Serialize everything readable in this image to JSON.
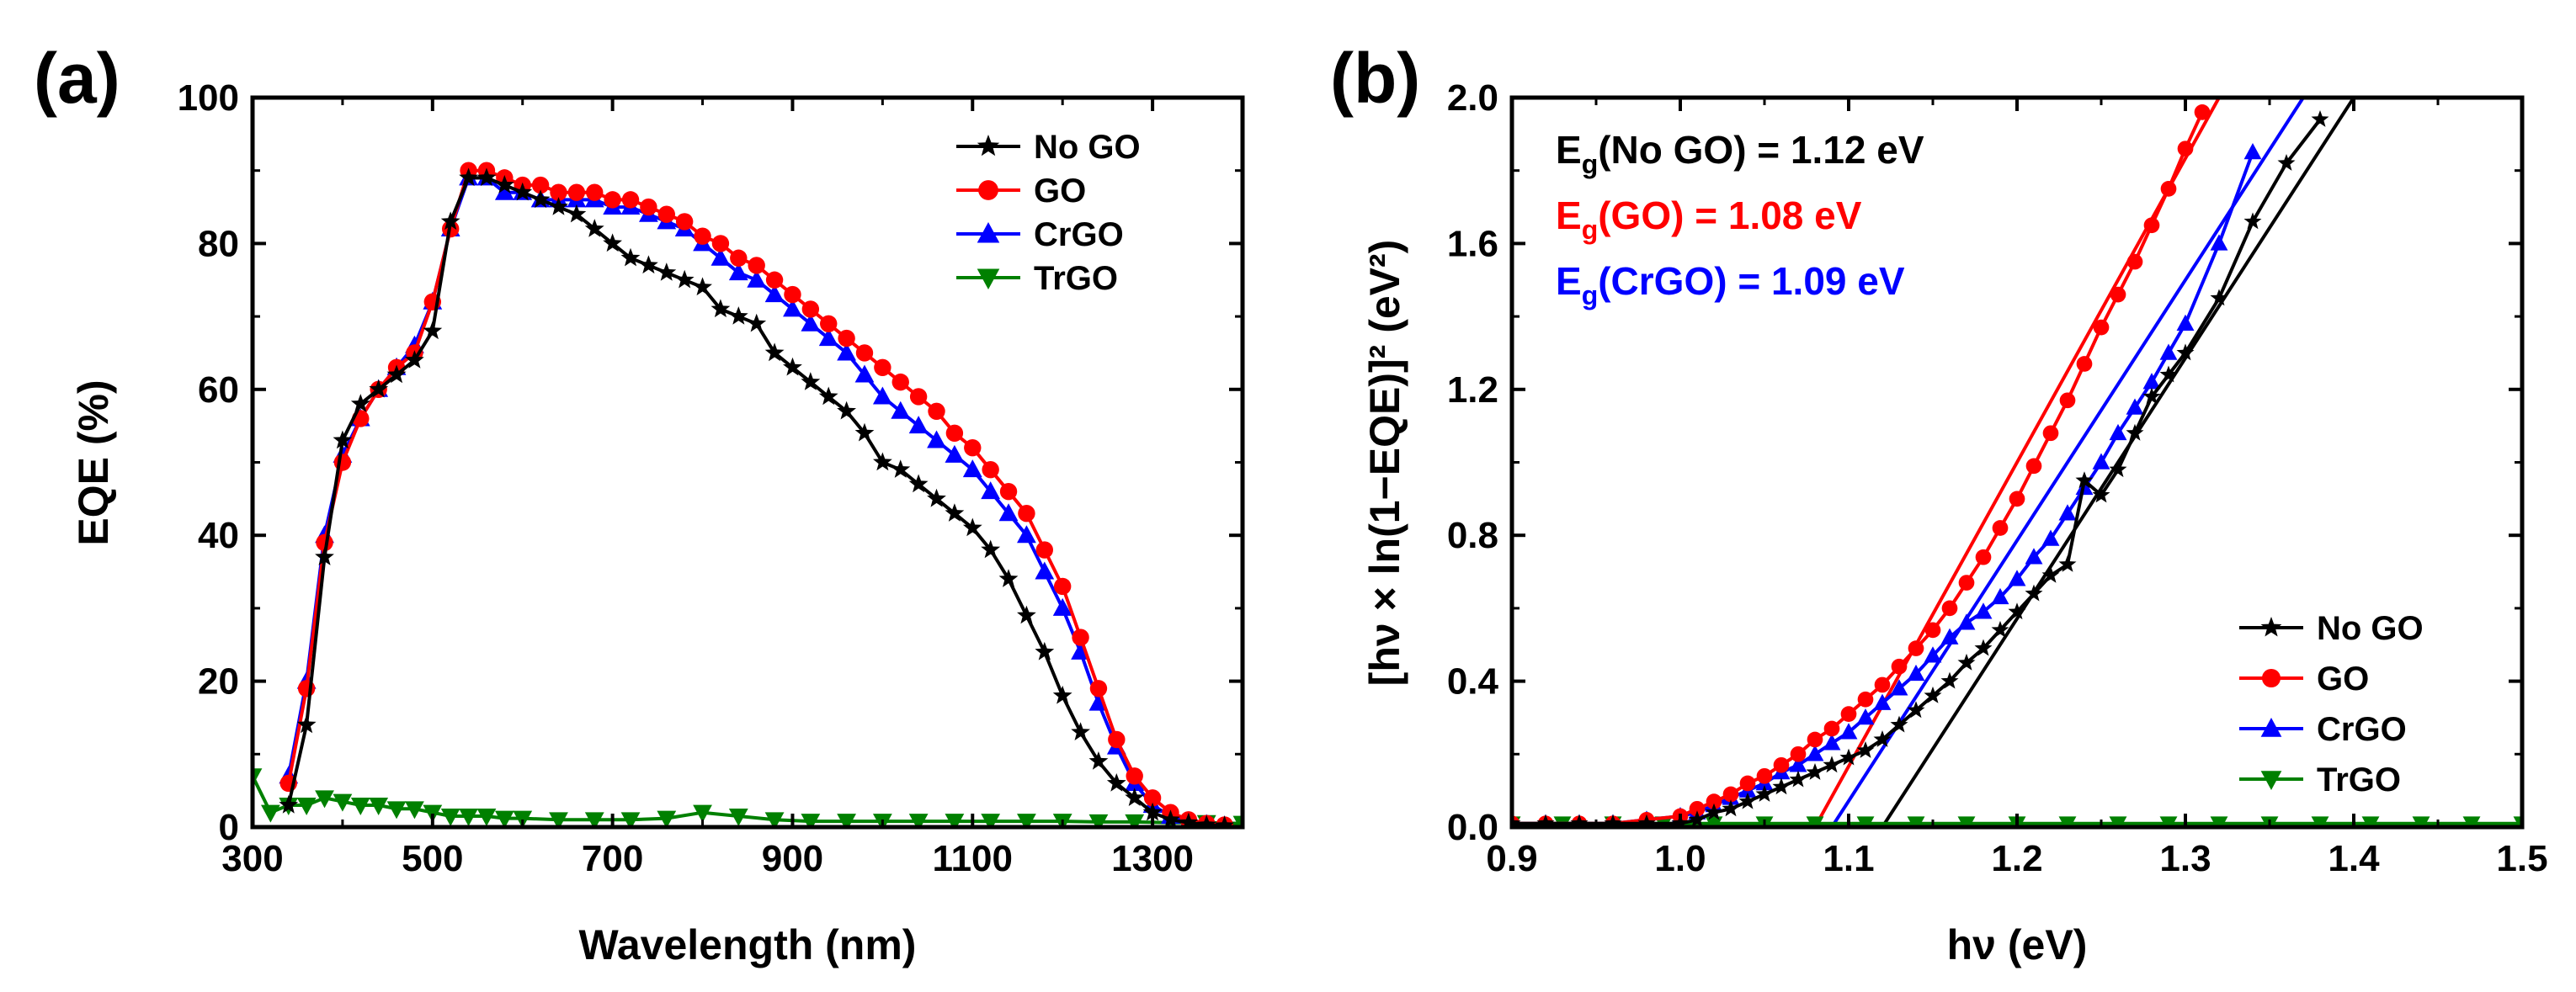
{
  "panel_labels": {
    "a": "(a)",
    "b": "(b)"
  },
  "colors": {
    "No GO": "#000000",
    "GO": "#ff0000",
    "CrGO": "#0000ff",
    "TrGO": "#008000"
  },
  "annotations": {
    "b": [
      {
        "pre": "E",
        "sub": "g",
        "post": "(No GO) = 1.12 eV",
        "color": "#000000"
      },
      {
        "pre": "E",
        "sub": "g",
        "post": "(GO) = 1.08 eV",
        "color": "#ff0000"
      },
      {
        "pre": "E",
        "sub": "g",
        "post": "(CrGO) = 1.09 eV",
        "color": "#0000ff"
      }
    ]
  },
  "chart_data": [
    {
      "id": "a",
      "type": "line",
      "title": "",
      "xlabel": "Wavelength (nm)",
      "ylabel": "EQE (%)",
      "xlim": [
        300,
        1400
      ],
      "ylim": [
        0,
        100
      ],
      "xticks": [
        300,
        500,
        700,
        900,
        1100,
        1300
      ],
      "yticks": [
        0,
        20,
        40,
        60,
        80,
        100
      ],
      "legend_position": "top-right",
      "series": [
        {
          "name": "No GO",
          "marker": "star",
          "x": [
            340,
            360,
            380,
            400,
            420,
            440,
            460,
            480,
            500,
            520,
            540,
            560,
            580,
            600,
            620,
            640,
            660,
            680,
            700,
            720,
            740,
            760,
            780,
            800,
            820,
            840,
            860,
            880,
            900,
            920,
            940,
            960,
            980,
            1000,
            1020,
            1040,
            1060,
            1080,
            1100,
            1120,
            1140,
            1160,
            1180,
            1200,
            1220,
            1240,
            1260,
            1280,
            1300,
            1320,
            1340,
            1360,
            1380
          ],
          "y": [
            3,
            14,
            37,
            53,
            58,
            60,
            62,
            64,
            68,
            83,
            89,
            89,
            88,
            87,
            86,
            85,
            84,
            82,
            80,
            78,
            77,
            76,
            75,
            74,
            71,
            70,
            69,
            65,
            63,
            61,
            59,
            57,
            54,
            50,
            49,
            47,
            45,
            43,
            41,
            38,
            34,
            29,
            24,
            18,
            13,
            9,
            6,
            4,
            2,
            1,
            0.6,
            0.3,
            0.2
          ]
        },
        {
          "name": "GO",
          "marker": "circle",
          "x": [
            340,
            360,
            380,
            400,
            420,
            440,
            460,
            480,
            500,
            520,
            540,
            560,
            580,
            600,
            620,
            640,
            660,
            680,
            700,
            720,
            740,
            760,
            780,
            800,
            820,
            840,
            860,
            880,
            900,
            920,
            940,
            960,
            980,
            1000,
            1020,
            1040,
            1060,
            1080,
            1100,
            1120,
            1140,
            1160,
            1180,
            1200,
            1220,
            1240,
            1260,
            1280,
            1300,
            1320,
            1340,
            1360,
            1380
          ],
          "y": [
            6,
            19,
            39,
            50,
            56,
            60,
            63,
            65,
            72,
            82,
            90,
            90,
            89,
            88,
            88,
            87,
            87,
            87,
            86,
            86,
            85,
            84,
            83,
            81,
            80,
            78,
            77,
            75,
            73,
            71,
            69,
            67,
            65,
            63,
            61,
            59,
            57,
            54,
            52,
            49,
            46,
            43,
            38,
            33,
            26,
            19,
            12,
            7,
            4,
            2,
            1,
            0.5,
            0.3
          ]
        },
        {
          "name": "CrGO",
          "marker": "triangle-up",
          "x": [
            340,
            360,
            380,
            400,
            420,
            440,
            460,
            480,
            500,
            520,
            540,
            560,
            580,
            600,
            620,
            640,
            660,
            680,
            700,
            720,
            740,
            760,
            780,
            800,
            820,
            840,
            860,
            880,
            900,
            920,
            940,
            960,
            980,
            1000,
            1020,
            1040,
            1060,
            1080,
            1100,
            1120,
            1140,
            1160,
            1180,
            1200,
            1220,
            1240,
            1260,
            1280,
            1300,
            1320,
            1340,
            1360,
            1380
          ],
          "y": [
            7,
            20,
            40,
            51,
            56,
            60,
            63,
            66,
            72,
            82,
            89,
            89,
            87,
            87,
            86,
            86,
            86,
            86,
            85,
            85,
            84,
            83,
            82,
            80,
            78,
            76,
            75,
            73,
            71,
            69,
            67,
            65,
            62,
            59,
            57,
            55,
            53,
            51,
            49,
            46,
            43,
            40,
            35,
            30,
            24,
            17,
            11,
            6,
            3,
            1.5,
            0.8,
            0.4,
            0.2
          ]
        },
        {
          "name": "TrGO",
          "marker": "triangle-down",
          "x": [
            300,
            320,
            340,
            360,
            380,
            400,
            420,
            440,
            460,
            480,
            500,
            520,
            540,
            560,
            580,
            600,
            640,
            680,
            720,
            760,
            800,
            840,
            880,
            920,
            960,
            1000,
            1040,
            1080,
            1120,
            1160,
            1200,
            1240,
            1280,
            1320,
            1360,
            1400
          ],
          "y": [
            7,
            2,
            3,
            3,
            4,
            3.5,
            3,
            3,
            2.5,
            2.5,
            2,
            1.5,
            1.5,
            1.5,
            1.2,
            1.2,
            1,
            1,
            1,
            1.2,
            2,
            1.5,
            1,
            0.8,
            0.8,
            0.8,
            0.8,
            0.8,
            0.8,
            0.8,
            0.8,
            0.7,
            0.7,
            0.6,
            0.6,
            0.5
          ]
        }
      ]
    },
    {
      "id": "b",
      "type": "line",
      "title": "",
      "xlabel": "hν (eV)",
      "ylabel": "[hν × ln(1−EQE)]² (eV²)",
      "xlim": [
        0.9,
        1.5
      ],
      "ylim": [
        0.0,
        2.0
      ],
      "xticks": [
        0.9,
        1.0,
        1.1,
        1.2,
        1.3,
        1.4,
        1.5
      ],
      "yticks": [
        0.0,
        0.4,
        0.8,
        1.2,
        1.6,
        2.0
      ],
      "legend_position": "bottom-right",
      "series": [
        {
          "name": "No GO",
          "marker": "star",
          "x": [
            0.9,
            0.92,
            0.94,
            0.96,
            0.98,
            1.0,
            1.01,
            1.02,
            1.03,
            1.04,
            1.05,
            1.06,
            1.07,
            1.08,
            1.09,
            1.1,
            1.11,
            1.12,
            1.13,
            1.14,
            1.15,
            1.16,
            1.17,
            1.18,
            1.19,
            1.2,
            1.21,
            1.22,
            1.23,
            1.24,
            1.25,
            1.26,
            1.27,
            1.28,
            1.29,
            1.3,
            1.32,
            1.34,
            1.36,
            1.38
          ],
          "y": [
            0.01,
            0.01,
            0.01,
            0.01,
            0.01,
            0.01,
            0.02,
            0.04,
            0.05,
            0.07,
            0.09,
            0.11,
            0.13,
            0.15,
            0.17,
            0.19,
            0.21,
            0.24,
            0.28,
            0.32,
            0.36,
            0.4,
            0.45,
            0.49,
            0.54,
            0.59,
            0.64,
            0.69,
            0.72,
            0.95,
            0.91,
            0.98,
            1.08,
            1.18,
            1.24,
            1.3,
            1.45,
            1.66,
            1.82,
            1.94
          ]
        },
        {
          "name": "GO",
          "marker": "circle",
          "x": [
            0.9,
            0.92,
            0.94,
            0.96,
            0.98,
            1.0,
            1.01,
            1.02,
            1.03,
            1.04,
            1.05,
            1.06,
            1.07,
            1.08,
            1.09,
            1.1,
            1.11,
            1.12,
            1.13,
            1.14,
            1.15,
            1.16,
            1.17,
            1.18,
            1.19,
            1.2,
            1.21,
            1.22,
            1.23,
            1.24,
            1.25,
            1.26,
            1.27,
            1.28,
            1.29,
            1.3,
            1.31
          ],
          "y": [
            0.01,
            0.01,
            0.01,
            0.01,
            0.02,
            0.03,
            0.05,
            0.07,
            0.09,
            0.12,
            0.14,
            0.17,
            0.2,
            0.24,
            0.27,
            0.31,
            0.35,
            0.39,
            0.44,
            0.49,
            0.54,
            0.6,
            0.67,
            0.74,
            0.82,
            0.9,
            0.99,
            1.08,
            1.17,
            1.27,
            1.37,
            1.46,
            1.55,
            1.65,
            1.75,
            1.86,
            1.96
          ]
        },
        {
          "name": "CrGO",
          "marker": "triangle-up",
          "x": [
            0.9,
            0.92,
            0.94,
            0.96,
            0.98,
            1.0,
            1.01,
            1.02,
            1.03,
            1.04,
            1.05,
            1.06,
            1.07,
            1.08,
            1.09,
            1.1,
            1.11,
            1.12,
            1.13,
            1.14,
            1.15,
            1.16,
            1.17,
            1.18,
            1.19,
            1.2,
            1.21,
            1.22,
            1.23,
            1.24,
            1.25,
            1.26,
            1.27,
            1.28,
            1.29,
            1.3,
            1.32,
            1.34
          ],
          "y": [
            0.01,
            0.01,
            0.01,
            0.01,
            0.02,
            0.03,
            0.04,
            0.06,
            0.08,
            0.1,
            0.12,
            0.15,
            0.17,
            0.2,
            0.23,
            0.26,
            0.3,
            0.34,
            0.38,
            0.42,
            0.47,
            0.52,
            0.56,
            0.59,
            0.63,
            0.68,
            0.74,
            0.79,
            0.86,
            0.93,
            1.0,
            1.08,
            1.15,
            1.22,
            1.3,
            1.38,
            1.6,
            1.85
          ]
        },
        {
          "name": "TrGO",
          "marker": "triangle-down",
          "x": [
            0.9,
            0.93,
            0.96,
            0.99,
            1.02,
            1.05,
            1.08,
            1.11,
            1.14,
            1.17,
            1.2,
            1.23,
            1.26,
            1.29,
            1.32,
            1.35,
            1.38,
            1.41,
            1.44,
            1.47,
            1.5
          ],
          "y": [
            0.01,
            0.01,
            0.01,
            0.01,
            0.01,
            0.01,
            0.01,
            0.01,
            0.01,
            0.01,
            0.01,
            0.01,
            0.01,
            0.01,
            0.01,
            0.01,
            0.01,
            0.01,
            0.01,
            0.01,
            0.01
          ]
        }
      ],
      "fit_lines": [
        {
          "name": "No GO",
          "x": [
            1.12,
            1.4
          ],
          "y": [
            0.0,
            2.0
          ]
        },
        {
          "name": "GO",
          "x": [
            1.08,
            1.32
          ],
          "y": [
            0.0,
            2.0
          ]
        },
        {
          "name": "CrGO",
          "x": [
            1.09,
            1.37
          ],
          "y": [
            0.0,
            2.0
          ]
        }
      ]
    }
  ]
}
